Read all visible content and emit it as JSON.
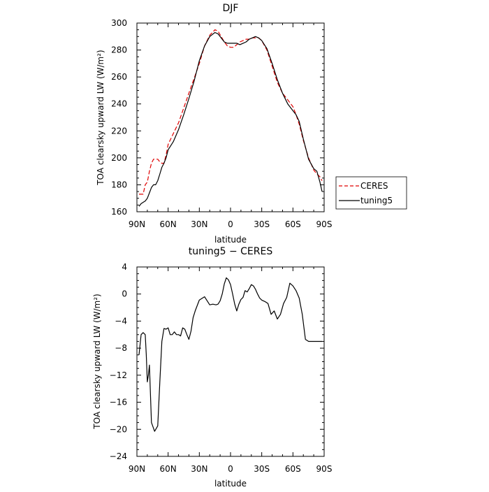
{
  "chart_data": [
    {
      "type": "line",
      "title": "DJF",
      "xlabel": "latitude",
      "ylabel": "TOA clearsky upward LW (W/m²)",
      "xlim": [
        -90,
        90
      ],
      "ylim": [
        160,
        300
      ],
      "x_ticks": [
        -90,
        -60,
        -30,
        0,
        30,
        60,
        90
      ],
      "x_tick_labels": [
        "90N",
        "60N",
        "30N",
        "0",
        "30S",
        "60S",
        "90S"
      ],
      "y_ticks": [
        160,
        180,
        200,
        220,
        240,
        260,
        280,
        300
      ],
      "y_tick_labels": [
        "160",
        "180",
        "200",
        "220",
        "240",
        "260",
        "280",
        "300"
      ],
      "legend": "right",
      "series": [
        {
          "name": "CERES",
          "color": "#e00000",
          "dash": "dashed",
          "x": [
            -88,
            -86,
            -84,
            -82,
            -80,
            -78,
            -76,
            -74,
            -72,
            -70,
            -68,
            -66,
            -64,
            -62,
            -60,
            -55,
            -50,
            -45,
            -40,
            -35,
            -30,
            -25,
            -20,
            -15,
            -12,
            -9,
            -6,
            -3,
            0,
            3,
            6,
            9,
            12,
            15,
            18,
            21,
            24,
            27,
            30,
            35,
            40,
            45,
            50,
            55,
            60,
            63,
            66,
            70,
            75,
            80,
            83,
            86,
            88
          ],
          "y": [
            173,
            173,
            173,
            180,
            182,
            190,
            196,
            199,
            199,
            199,
            197,
            196,
            196,
            202,
            210,
            218,
            226,
            237,
            248,
            259,
            270,
            283,
            291,
            295,
            294,
            290,
            286,
            283,
            282,
            282,
            284,
            286,
            287,
            288,
            288,
            289,
            289,
            289,
            287,
            280,
            268,
            256,
            248,
            243,
            238,
            232,
            225,
            213,
            200,
            191,
            188,
            186,
            183
          ]
        },
        {
          "name": "tuning5",
          "color": "#000000",
          "dash": "solid",
          "x": [
            -88,
            -86,
            -84,
            -82,
            -80,
            -78,
            -76,
            -74,
            -72,
            -70,
            -68,
            -66,
            -64,
            -62,
            -60,
            -55,
            -50,
            -45,
            -40,
            -35,
            -30,
            -25,
            -20,
            -15,
            -12,
            -9,
            -6,
            -3,
            0,
            3,
            6,
            9,
            12,
            15,
            18,
            21,
            24,
            27,
            30,
            35,
            40,
            45,
            50,
            55,
            60,
            63,
            66,
            70,
            75,
            80,
            83,
            86,
            88
          ],
          "y": [
            164,
            166,
            167,
            168,
            170,
            174,
            178,
            180,
            180,
            183,
            188,
            193,
            196,
            200,
            206,
            212,
            221,
            232,
            244,
            257,
            272,
            283,
            290,
            293,
            292,
            289,
            286,
            285,
            285,
            285,
            285,
            284,
            285,
            286,
            288,
            289,
            290,
            289,
            287,
            281,
            270,
            258,
            248,
            240,
            235,
            232,
            227,
            214,
            199,
            192,
            190,
            182,
            175
          ]
        }
      ]
    },
    {
      "type": "line",
      "title": "tuning5 − CERES",
      "xlabel": "latitude",
      "ylabel": "TOA clearsky upward LW (W/m²)",
      "xlim": [
        -90,
        90
      ],
      "ylim": [
        -24,
        4
      ],
      "x_ticks": [
        -90,
        -60,
        -30,
        0,
        30,
        60,
        90
      ],
      "x_tick_labels": [
        "90N",
        "60N",
        "30N",
        "0",
        "30S",
        "60S",
        "90S"
      ],
      "y_ticks": [
        -24,
        -20,
        -16,
        -12,
        -8,
        -4,
        0,
        4
      ],
      "y_tick_labels": [
        "−24",
        "−20",
        "−16",
        "−12",
        "−8",
        "−4",
        "0",
        "4"
      ],
      "series": [
        {
          "name": "tuning5 − CERES",
          "color": "#000000",
          "dash": "solid",
          "x": [
            -88,
            -86,
            -84,
            -82,
            -81,
            -80,
            -79,
            -78,
            -76,
            -73,
            -70,
            -68,
            -66,
            -64,
            -62,
            -60,
            -58,
            -56,
            -54,
            -52,
            -50,
            -48,
            -46,
            -44,
            -42,
            -40,
            -38,
            -36,
            -34,
            -30,
            -25,
            -20,
            -17,
            -14,
            -12,
            -10,
            -8,
            -6,
            -4,
            -2,
            0,
            2,
            4,
            6,
            8,
            10,
            12,
            14,
            16,
            18,
            20,
            22,
            24,
            26,
            28,
            30,
            33,
            36,
            39,
            42,
            45,
            48,
            51,
            54,
            57,
            60,
            63,
            66,
            69,
            72,
            75,
            78,
            81,
            84,
            86,
            88
          ],
          "y": [
            -9,
            -6,
            -5.7,
            -6,
            -9,
            -13,
            -12,
            -10.5,
            -19,
            -20.3,
            -19.5,
            -13,
            -7,
            -5.1,
            -5.2,
            -5,
            -6,
            -6,
            -5.6,
            -6,
            -6,
            -6.2,
            -5,
            -5.2,
            -6,
            -6.7,
            -5.5,
            -3.5,
            -2.5,
            -0.9,
            -0.4,
            -1.6,
            -1.5,
            -1.6,
            -1.5,
            -1,
            0,
            1.5,
            2.4,
            2.1,
            1.4,
            0,
            -1.5,
            -2.5,
            -1.5,
            -0.8,
            -0.5,
            0.5,
            0.3,
            0.8,
            1.4,
            1.2,
            0.7,
            0,
            -0.6,
            -0.9,
            -1.1,
            -1.4,
            -3,
            -2.5,
            -3.7,
            -3,
            -1.4,
            -0.5,
            1.6,
            1.2,
            0.5,
            -0.6,
            -3,
            -6.7,
            -7,
            -7,
            -7,
            -7,
            -7,
            -7
          ]
        }
      ]
    }
  ],
  "legend_items": [
    {
      "label": "CERES",
      "color": "#e00000",
      "dash": "dashed"
    },
    {
      "label": "tuning5",
      "color": "#000000",
      "dash": "solid"
    }
  ]
}
